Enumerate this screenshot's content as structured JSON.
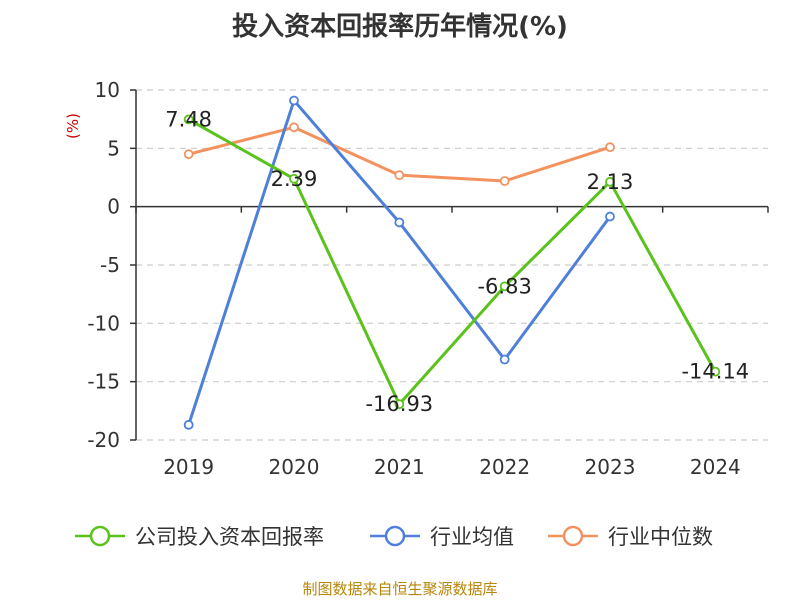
{
  "chart_data": {
    "type": "line",
    "title": "投入资本回报率历年情况(%)",
    "ylabel": "(%)",
    "xlabel": "",
    "categories": [
      "2019",
      "2020",
      "2021",
      "2022",
      "2023",
      "2024"
    ],
    "ylim": [
      -20,
      10
    ],
    "yticks": [
      10,
      5,
      0,
      -5,
      -10,
      -15,
      -20
    ],
    "grid": true,
    "legend_position": "bottom",
    "series": [
      {
        "name": "公司投入资本回报率",
        "color": "#5bc21c",
        "values": [
          7.48,
          2.39,
          -16.93,
          -6.83,
          2.13,
          -14.14
        ],
        "labels": [
          "7.48",
          "2.39",
          "-16.93",
          "-6.83",
          "2.13",
          "-14.14"
        ]
      },
      {
        "name": "行业均值",
        "color": "#4f80d9",
        "values": [
          -18.7,
          9.1,
          -1.35,
          -13.1,
          -0.85,
          null
        ]
      },
      {
        "name": "行业中位数",
        "color": "#f4925f",
        "values": [
          4.5,
          6.8,
          2.7,
          2.2,
          5.1,
          null
        ]
      }
    ]
  },
  "source": "制图数据来自恒生聚源数据库"
}
